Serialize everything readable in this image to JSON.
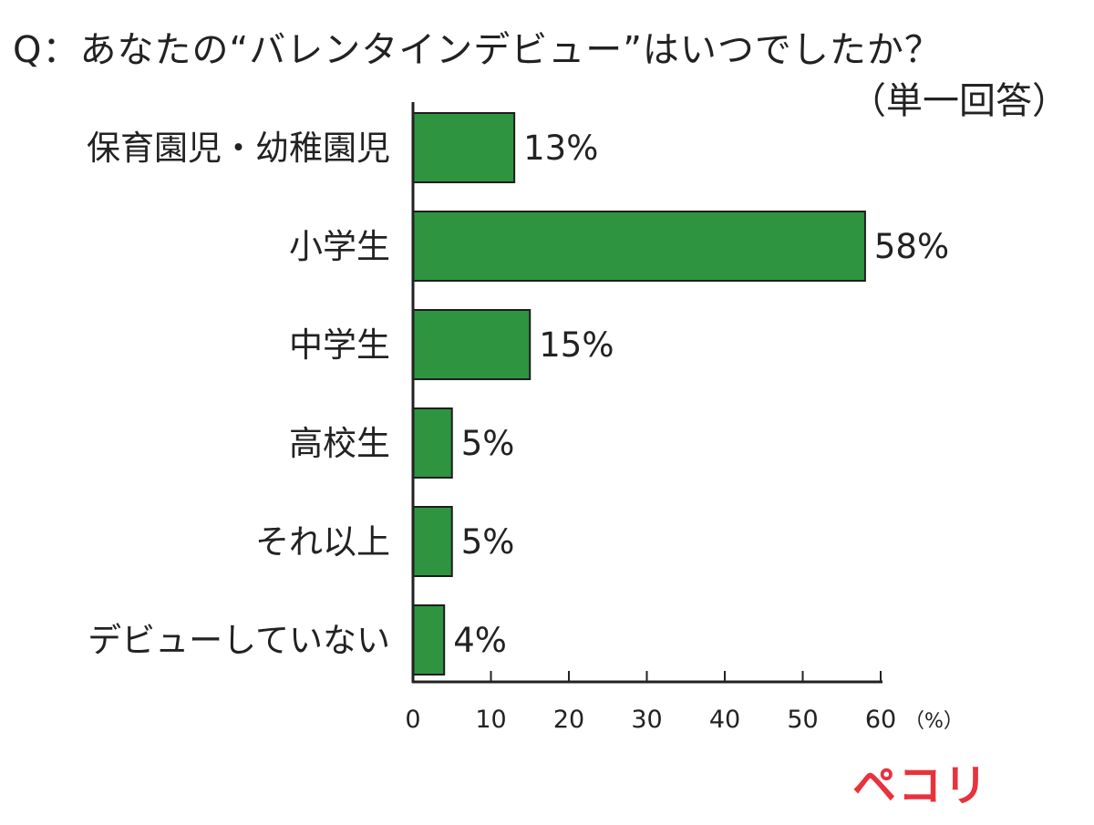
{
  "title": "Q：あなたの“バレンタインデビュー”はいつでしたか？",
  "subtitle": "（単一回答）",
  "logo_text": "ペコリ",
  "colors": {
    "bar": "#2e9440",
    "bar_stroke": "#1d1d1d",
    "axis": "#222222"
  },
  "chart_data": {
    "type": "bar",
    "orientation": "horizontal",
    "title": "Q：あなたの“バレンタインデビュー”はいつでしたか？",
    "subtitle": "（単一回答）",
    "categories": [
      "保育園児・幼稚園児",
      "小学生",
      "中学生",
      "高校生",
      "それ以上",
      "デビューしていない"
    ],
    "values": [
      13,
      58,
      15,
      5,
      5,
      4
    ],
    "value_labels": [
      "13%",
      "58%",
      "15%",
      "5%",
      "5%",
      "4%"
    ],
    "xlim": [
      0,
      60
    ],
    "xticks": [
      0,
      10,
      20,
      30,
      40,
      50,
      60
    ],
    "x_unit": "（%）",
    "grid": false,
    "legend": "none"
  }
}
